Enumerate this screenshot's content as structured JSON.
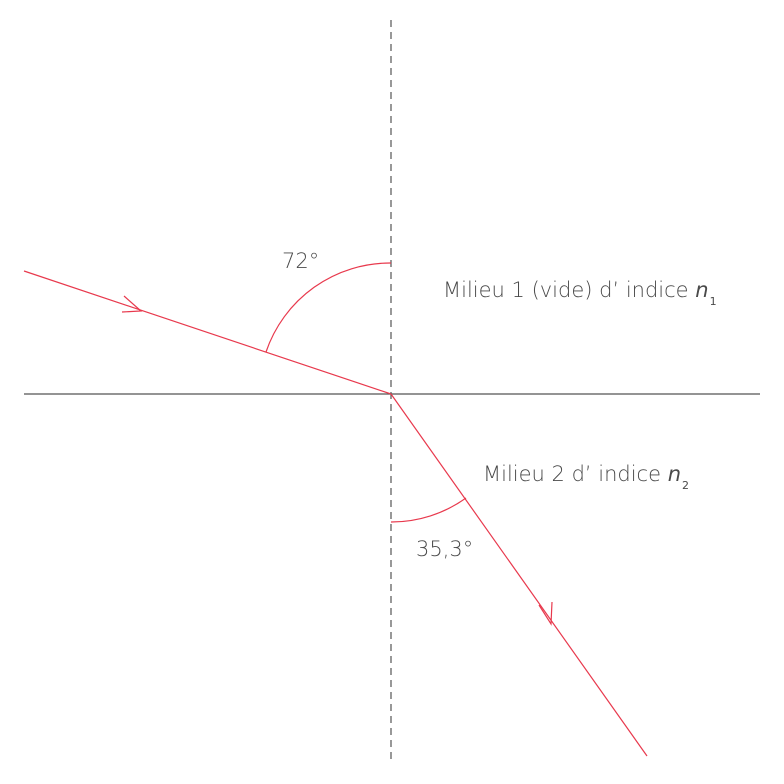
{
  "colors": {
    "ray": "#e8394d",
    "axis": "#555555",
    "text": "#4a4a4a"
  },
  "medium1": {
    "prefix": "Milieu 1 (vide) d’ indice ",
    "symbol": "n",
    "subscript": "1"
  },
  "medium2": {
    "prefix": "Milieu 2 d’ indice ",
    "symbol": "n",
    "subscript": "2"
  },
  "angles": {
    "incidence": "72°",
    "refraction": "35,3°"
  }
}
